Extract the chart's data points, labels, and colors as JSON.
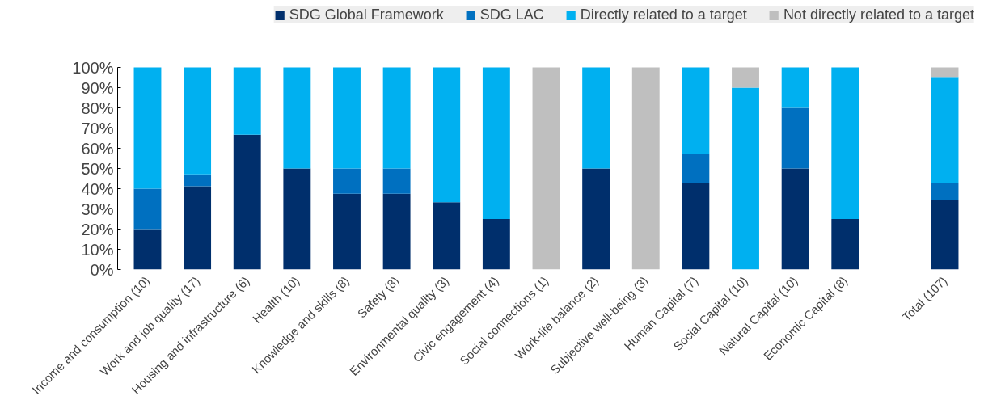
{
  "chart_data": {
    "type": "bar",
    "stacked": true,
    "categories": [
      "Income and consumption (10)",
      "Work and job quality (17)",
      "Housing and infrastructure (6)",
      "Health (10)",
      "Knowledge and skills (8)",
      "Safety (8)",
      "Environmental quality (3)",
      "Civic engagement (4)",
      "Social connections (1)",
      "Work-life balance (2)",
      "Subjective well-being (3)",
      "Human Capital (7)",
      "Social Capital (10)",
      "Natural Capital (10)",
      "Economic Capital (8)",
      null,
      "Total (107)"
    ],
    "series": [
      {
        "name": "SDG Global Framework",
        "color": "#002f6c",
        "values": [
          20,
          41.2,
          66.7,
          50,
          37.5,
          37.5,
          33.3,
          25,
          0,
          50,
          0,
          42.9,
          0,
          50,
          25,
          null,
          34.6
        ]
      },
      {
        "name": "SDG LAC",
        "color": "#0070c0",
        "values": [
          20,
          5.9,
          0,
          0,
          12.5,
          12.5,
          0,
          0,
          0,
          0,
          0,
          14.3,
          0,
          30,
          0,
          null,
          8.4
        ]
      },
      {
        "name": "Directly related to a target",
        "color": "#00b0f0",
        "values": [
          60,
          52.9,
          33.3,
          50,
          50,
          50,
          66.7,
          75,
          0,
          50,
          0,
          42.8,
          90,
          20,
          75,
          null,
          52.3
        ]
      },
      {
        "name": "Not directly related to a target",
        "color": "#bfbfbf",
        "values": [
          0,
          0,
          0,
          0,
          0,
          0,
          0,
          0,
          100,
          0,
          100,
          0,
          10,
          0,
          0,
          null,
          4.7
        ]
      }
    ],
    "ylim": [
      0,
      100
    ],
    "yticks": [
      {
        "value": 0,
        "label": "0%"
      },
      {
        "value": 10,
        "label": "10%"
      },
      {
        "value": 20,
        "label": "20%"
      },
      {
        "value": 30,
        "label": "30%"
      },
      {
        "value": 40,
        "label": "40%"
      },
      {
        "value": 50,
        "label": "50%"
      },
      {
        "value": 60,
        "label": "60%"
      },
      {
        "value": 70,
        "label": "70%"
      },
      {
        "value": 80,
        "label": "80%"
      },
      {
        "value": 90,
        "label": "90%"
      },
      {
        "value": 100,
        "label": "100%"
      }
    ],
    "grid": false,
    "legend": "top"
  }
}
